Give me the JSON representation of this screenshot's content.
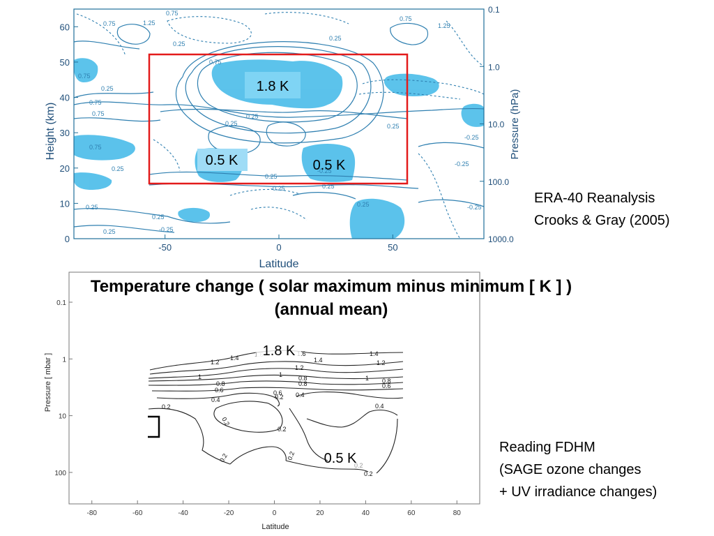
{
  "chart_data": [
    {
      "type": "heatmap",
      "description_source": "contour plot",
      "xlabel": "Latitude",
      "ylabel_left": "Height (km)",
      "ylabel_right": "Pressure (hPa)",
      "xlim": [
        -90,
        90
      ],
      "ylim": [
        0,
        65
      ],
      "x_ticks": [
        "-50",
        "0",
        "50"
      ],
      "y_ticks": [
        "0",
        "10",
        "20",
        "30",
        "40",
        "50",
        "60"
      ],
      "right_ticks": [
        "0.1",
        "1.0",
        "10.0",
        "100.0",
        "1000.0"
      ],
      "box_color": "#e31b1b",
      "fill_color": "#3fb8e8",
      "line_color": "#2e7fb0",
      "contour_labels": [
        "0.75",
        "0.75",
        "1.25",
        "1.25",
        "0.75",
        "0.25",
        "0.25",
        "0.25",
        "0.25",
        "0.25",
        "0.25",
        "0.75",
        "0.75",
        "0.25",
        "0.25",
        "0.25",
        "-0.25",
        "-0.25",
        "-0.25",
        "-0.25",
        "0.25",
        "0.75",
        "0.75",
        "0.25",
        "0.75",
        "0.25",
        "-0.25",
        "-0.25",
        "0.25"
      ],
      "annotations": [
        {
          "text": "1.8 K"
        },
        {
          "text": "0.5 K"
        },
        {
          "text": "0.5 K"
        }
      ]
    },
    {
      "type": "line",
      "description_source": "contour plot",
      "xlabel": "Latitude",
      "ylabel": "Pressure [ mbar ]",
      "xlim": [
        -90,
        90
      ],
      "x_ticks": [
        "-80",
        "-60",
        "-40",
        "-20",
        "0",
        "20",
        "40",
        "60",
        "80"
      ],
      "y_ticks": [
        "0.1",
        "1",
        "10",
        "100"
      ],
      "contour_labels": [
        "1.4",
        "1.6",
        "1.6",
        "1.4",
        "1.4",
        "1.2",
        "1.2",
        "1.2",
        "1",
        "1",
        "1",
        "0.8",
        "0.8",
        "0.8",
        "0.8",
        "0.6",
        "0.6",
        "0.6",
        "0.4",
        "0.4",
        "0.4",
        "0.2",
        "0.2",
        "0.2",
        "0.2",
        "0.2",
        "0.2",
        "0.2",
        "0.2"
      ],
      "annotations": [
        {
          "text": "1.8 K"
        },
        {
          "text": "0.5 K"
        }
      ]
    }
  ],
  "title_line1": "Temperature change ( solar maximum minus minimum [ K ] )",
  "title_line2": "(annual mean)",
  "note_top": [
    "ERA-40 Reanalysis",
    "Crooks & Gray (2005)"
  ],
  "note_bottom": [
    "Reading FDHM",
    "(SAGE ozone changes",
    "+ UV irradiance changes)"
  ]
}
